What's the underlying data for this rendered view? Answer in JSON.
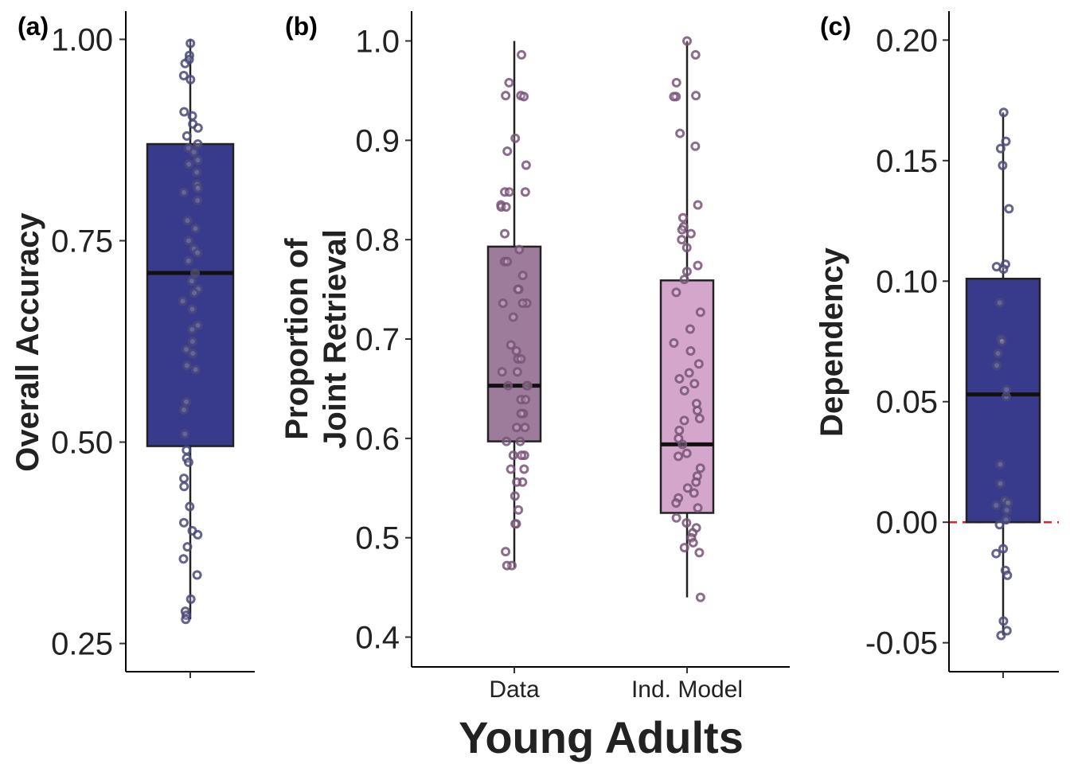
{
  "chart_data": [
    {
      "panel_label": "(a)",
      "type": "box",
      "ylabel": "Overall Accuracy",
      "xlabel": "",
      "ylim": [
        0.215,
        1.035
      ],
      "yticks": [
        0.25,
        0.5,
        0.75,
        1.0
      ],
      "ytick_labels": [
        "0.25",
        "0.50",
        "0.75",
        "1.00"
      ],
      "categories": [
        ""
      ],
      "boxes": [
        {
          "category": "",
          "min": 0.28,
          "q1": 0.495,
          "median": 0.71,
          "q3": 0.87,
          "max": 1.0,
          "fill": "#383a8c"
        }
      ],
      "points": [
        [
          0.995,
          0.98,
          0.975,
          0.97,
          0.955,
          0.95,
          0.91,
          0.905,
          0.895,
          0.89,
          0.88,
          0.87,
          0.865,
          0.86,
          0.85,
          0.845,
          0.835,
          0.82,
          0.815,
          0.81,
          0.8,
          0.775,
          0.765,
          0.75,
          0.74,
          0.735,
          0.725,
          0.71,
          0.7,
          0.69,
          0.685,
          0.675,
          0.665,
          0.645,
          0.64,
          0.625,
          0.615,
          0.61,
          0.595,
          0.59,
          0.55,
          0.54,
          0.51,
          0.49,
          0.48,
          0.475,
          0.455,
          0.445,
          0.42,
          0.4,
          0.39,
          0.385,
          0.37,
          0.355,
          0.335,
          0.305,
          0.29,
          0.285,
          0.28
        ]
      ],
      "point_color": "#4a4a7a",
      "reference_line": null
    },
    {
      "panel_label": "(b)",
      "type": "box",
      "ylabel": "Proportion of\nJoint Retrieval",
      "ylabel_lines": [
        "Proportion of",
        "Joint Retrieval"
      ],
      "xlabel": "Young Adults",
      "ylim": [
        0.37,
        1.03
      ],
      "yticks": [
        0.4,
        0.5,
        0.6,
        0.7,
        0.8,
        0.9,
        1.0
      ],
      "ytick_labels": [
        "0.4",
        "0.5",
        "0.6",
        "0.7",
        "0.8",
        "0.9",
        "1.0"
      ],
      "categories": [
        "Data",
        "Ind. Model"
      ],
      "boxes": [
        {
          "category": "Data",
          "min": 0.47,
          "q1": 0.597,
          "median": 0.653,
          "q3": 0.793,
          "max": 1.0,
          "fill": "#9d7b9b"
        },
        {
          "category": "Ind. Model",
          "min": 0.44,
          "q1": 0.525,
          "median": 0.594,
          "q3": 0.759,
          "max": 1.0,
          "fill": "#d4a6cc"
        }
      ],
      "points": [
        [
          0.986,
          0.958,
          0.945,
          0.944,
          0.945,
          0.902,
          0.889,
          0.875,
          0.848,
          0.848,
          0.848,
          0.835,
          0.833,
          0.833,
          0.806,
          0.79,
          0.778,
          0.778,
          0.764,
          0.75,
          0.75,
          0.736,
          0.736,
          0.736,
          0.722,
          0.694,
          0.688,
          0.68,
          0.68,
          0.667,
          0.667,
          0.653,
          0.653,
          0.653,
          0.639,
          0.639,
          0.625,
          0.625,
          0.611,
          0.611,
          0.597,
          0.597,
          0.583,
          0.583,
          0.583,
          0.569,
          0.569,
          0.556,
          0.556,
          0.542,
          0.528,
          0.514,
          0.514,
          0.486,
          0.472,
          0.472
        ],
        [
          1.0,
          0.986,
          0.958,
          0.945,
          0.944,
          0.944,
          0.907,
          0.894,
          0.835,
          0.822,
          0.813,
          0.81,
          0.806,
          0.8,
          0.792,
          0.774,
          0.768,
          0.76,
          0.747,
          0.727,
          0.71,
          0.696,
          0.688,
          0.675,
          0.666,
          0.66,
          0.655,
          0.648,
          0.635,
          0.628,
          0.62,
          0.618,
          0.608,
          0.6,
          0.594,
          0.585,
          0.582,
          0.57,
          0.562,
          0.556,
          0.55,
          0.545,
          0.54,
          0.535,
          0.53,
          0.52,
          0.515,
          0.51,
          0.505,
          0.5,
          0.495,
          0.49,
          0.485,
          0.44
        ]
      ],
      "point_color": "#7a5479",
      "reference_line": null
    },
    {
      "panel_label": "(c)",
      "type": "box",
      "ylabel": "Dependency",
      "xlabel": "",
      "ylim": [
        -0.062,
        0.212
      ],
      "yticks": [
        -0.05,
        0.0,
        0.05,
        0.1,
        0.15,
        0.2
      ],
      "ytick_labels": [
        "-0.05",
        "0.00",
        "0.05",
        "0.10",
        "0.15",
        "0.20"
      ],
      "categories": [
        ""
      ],
      "boxes": [
        {
          "category": "",
          "min": -0.047,
          "q1": 0.0,
          "median": 0.053,
          "q3": 0.101,
          "max": 0.17,
          "fill": "#383a8c"
        }
      ],
      "points": [
        [
          0.17,
          0.158,
          0.155,
          0.148,
          0.13,
          0.107,
          0.106,
          0.105,
          0.091,
          0.076,
          0.075,
          0.07,
          0.065,
          0.055,
          0.052,
          0.024,
          0.016,
          0.009,
          0.008,
          0.007,
          0.005,
          0.001,
          -0.001,
          -0.011,
          -0.013,
          -0.02,
          -0.022,
          -0.041,
          -0.045,
          -0.047
        ]
      ],
      "point_color": "#4a4a7a",
      "reference_line": {
        "value": 0.0,
        "color": "#e0202a",
        "style": "dashed"
      }
    }
  ]
}
